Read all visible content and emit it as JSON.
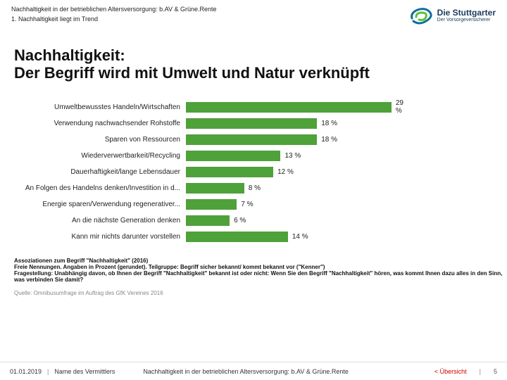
{
  "header": {
    "title_line": "Nachhaltigkeit in der betrieblichen Altersversorgung: b.AV & Grüne.Rente",
    "sub_line": "1. Nachhaltigkeit liegt im Trend"
  },
  "logo": {
    "brand": "Die Stuttgarter",
    "tagline": "Der Vorsorgeversicherer",
    "swirl_outer": "#0b6e99",
    "swirl_inner": "#5fbf3f"
  },
  "title": "Nachhaltigkeit:\nDer Begriff wird mit Umwelt und Natur verknüpft",
  "chart": {
    "type": "bar-horizontal",
    "bar_color_primary": "#4fa13a",
    "bar_color_alt": "#6aa84f",
    "label_fontsize": 10,
    "value_fontsize": 10,
    "max_value": 29,
    "unit": "%",
    "rows": [
      {
        "label": "Umweltbewusstes Handeln/Wirtschaften",
        "value": 29
      },
      {
        "label": "Verwendung nachwachsender Rohstoffe",
        "value": 18
      },
      {
        "label": "Sparen von Ressourcen",
        "value": 18
      },
      {
        "label": "Wiederverwertbarkeit/Recycling",
        "value": 13
      },
      {
        "label": "Dauerhaftigkeit/lange Lebensdauer",
        "value": 12
      },
      {
        "label": "An Folgen des Handelns denken/Investition in d...",
        "value": 8
      },
      {
        "label": "Energie sparen/Verwendung regenerativer...",
        "value": 7
      },
      {
        "label": "An die nächste Generation denken",
        "value": 6
      },
      {
        "label": "Kann mir nichts darunter vorstellen",
        "value": 14
      }
    ]
  },
  "notes": [
    "Assoziationen zum Begriff \"Nachhaltigkeit\" (2016)",
    "Freie Nennungen. Angaben in Prozent (gerundet). Teilgruppe: Begriff sicher bekannt/ kommt bekannt vor (\"Kenner\")",
    "Fragestellung: Unabhängig davon, ob Ihnen der Begriff \"Nachhaltigkeit\" bekannt ist oder nicht: Wenn Sie den Begriff \"Nachhaltigkeit\" hören, was kommt Ihnen dazu alles in den Sinn, was verbinden Sie damit?"
  ],
  "source": "Quelle: Omnibusumfrage im Auftrag des GfK Vereines 2016",
  "footer": {
    "date": "01.01.2019",
    "author": "Name des Vermittlers",
    "mid": "Nachhaltigkeit in der betrieblichen Altersversorgung: b.AV & Grüne.Rente",
    "back_link": "< Übersicht",
    "page": "5"
  }
}
